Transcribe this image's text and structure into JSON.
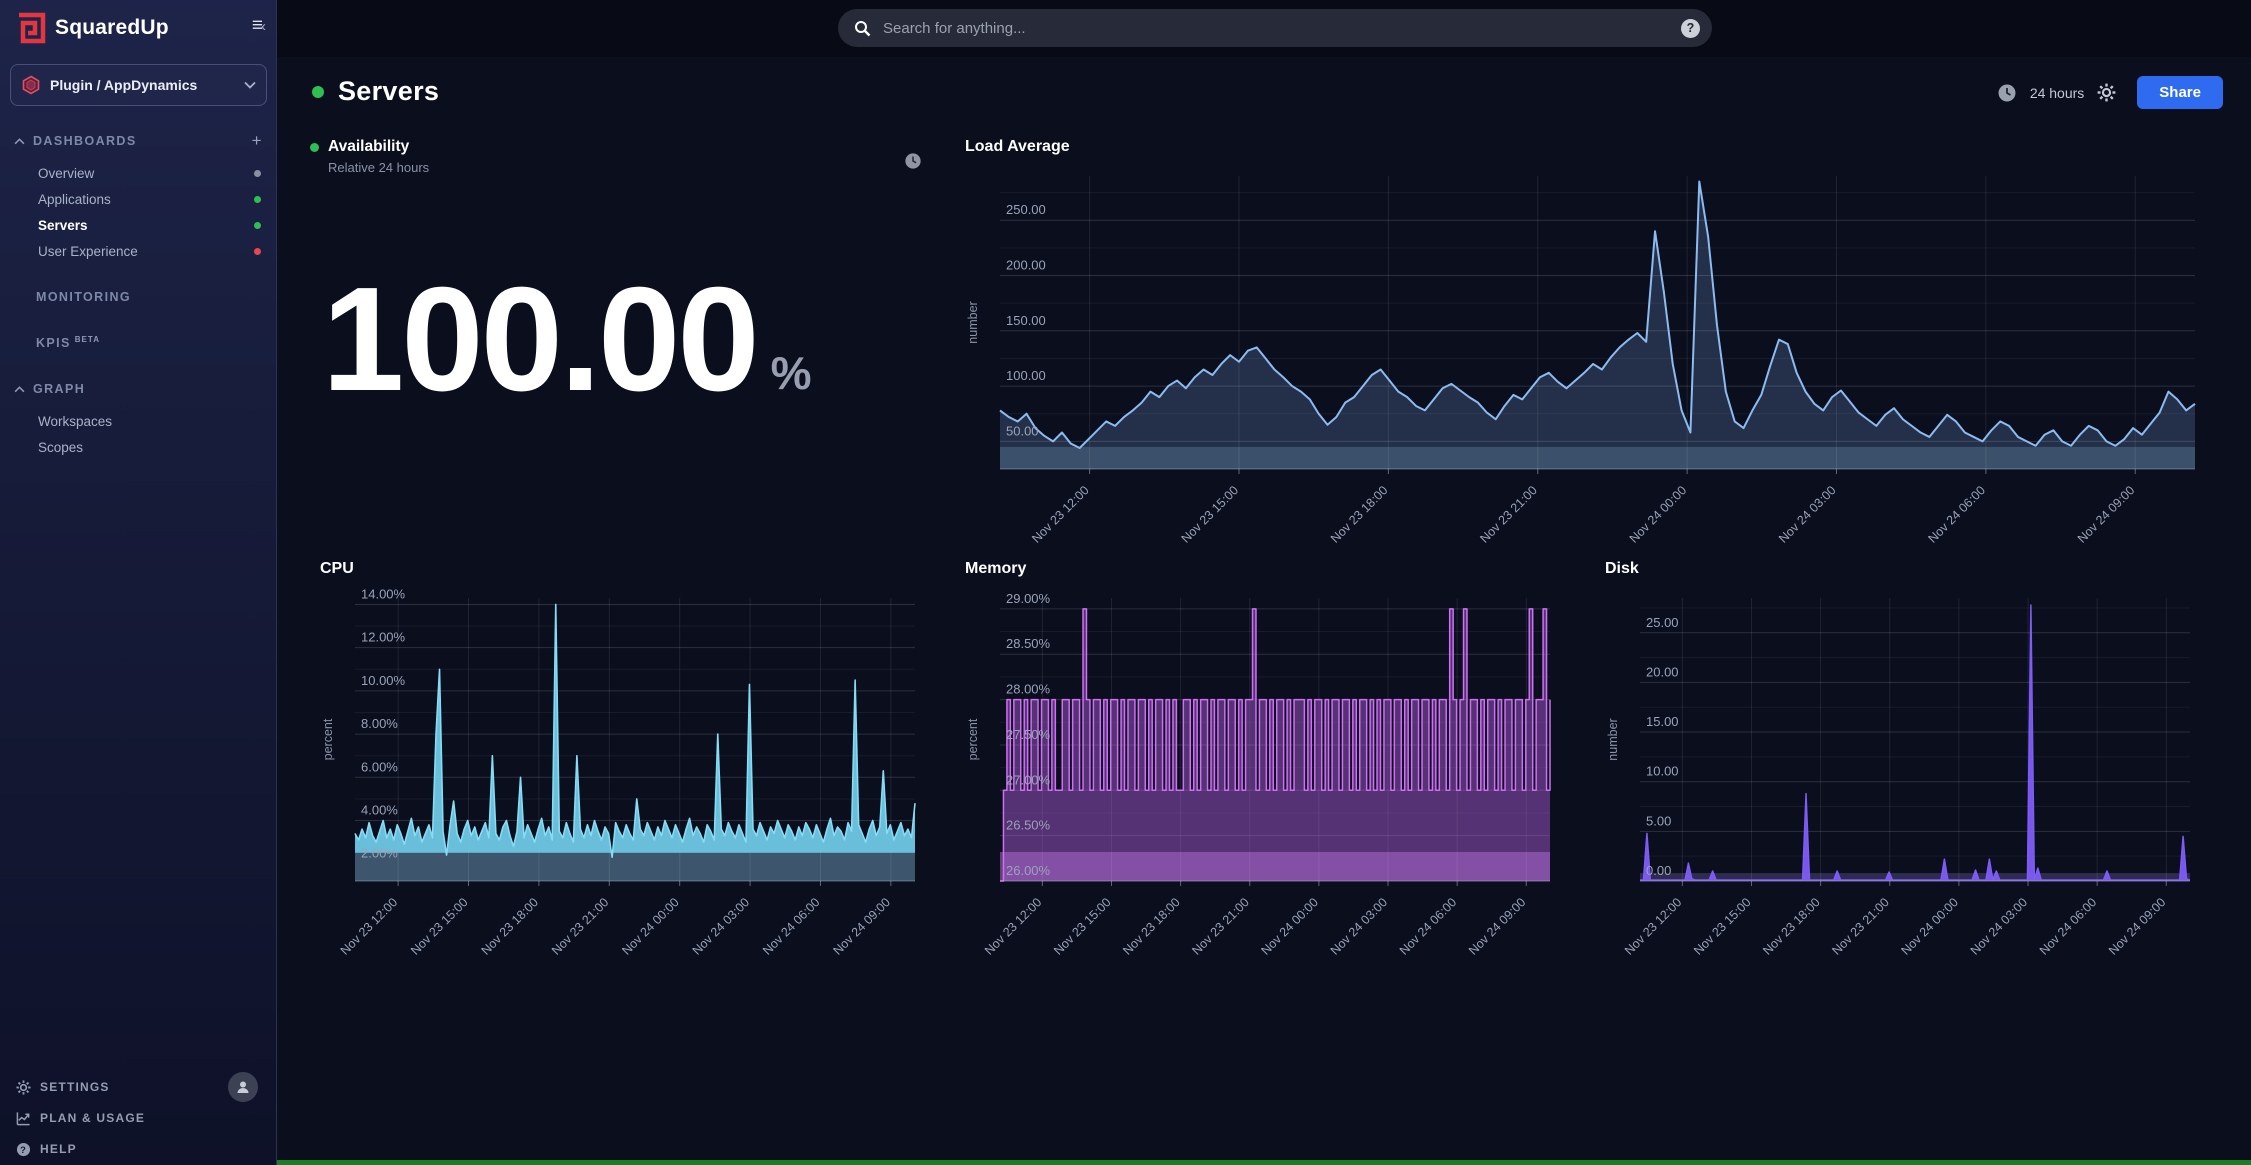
{
  "colors": {
    "accent_blue": "#2e6bf0",
    "status_green": "#2fbe52",
    "status_red": "#e5484d",
    "status_gray": "#8a90a0",
    "load_line": "#8cbbf0",
    "cpu_line": "#86dcf5",
    "memory_line": "#d06ef6",
    "disk_line": "#7e5cf6"
  },
  "sidebar": {
    "logo_text": "SquaredUp",
    "workspace": {
      "label": "Plugin / AppDynamics"
    },
    "sections": {
      "dashboards": {
        "label": "DASHBOARDS",
        "items": [
          {
            "label": "Overview",
            "status": "gray"
          },
          {
            "label": "Applications",
            "status": "green"
          },
          {
            "label": "Servers",
            "status": "green",
            "active": true
          },
          {
            "label": "User Experience",
            "status": "red"
          }
        ]
      },
      "monitoring": {
        "label": "MONITORING"
      },
      "kpis": {
        "label": "KPIS",
        "badge": "BETA"
      },
      "graph": {
        "label": "GRAPH",
        "items": [
          {
            "label": "Workspaces"
          },
          {
            "label": "Scopes"
          }
        ]
      }
    },
    "footer": {
      "settings": "SETTINGS",
      "plan_usage": "PLAN & USAGE",
      "help": "HELP"
    }
  },
  "topbar": {
    "search_placeholder": "Search for anything..."
  },
  "header": {
    "title": "Servers",
    "time_range": "24 hours",
    "share_label": "Share"
  },
  "availability": {
    "title": "Availability",
    "subtitle": "Relative 24 hours",
    "value": "100.00",
    "unit": "%"
  },
  "chart_data": [
    {
      "type": "area",
      "title": "Load Average",
      "ytitle": "number",
      "color": "#8cbbf0",
      "fill": "rgba(130,175,232,0.22)",
      "fill_to": 45,
      "band": {
        "from": 45,
        "color": "#3b506a"
      },
      "stroke_width": 2,
      "ylim": [
        25,
        290
      ],
      "yticks": [
        {
          "v": 50,
          "label": "50.00"
        },
        {
          "v": 100,
          "label": "100.00"
        },
        {
          "v": 150,
          "label": "150.00"
        },
        {
          "v": 200,
          "label": "200.00"
        },
        {
          "v": 250,
          "label": "250.00"
        }
      ],
      "x_first": 0.075,
      "x_step": 0.125,
      "x_labels": [
        "Nov 23 12:00",
        "Nov 23 15:00",
        "Nov 23 18:00",
        "Nov 23 21:00",
        "Nov 24 00:00",
        "Nov 24 03:00",
        "Nov 24 06:00",
        "Nov 24 09:00"
      ],
      "values": [
        78,
        72,
        68,
        75,
        62,
        55,
        50,
        58,
        48,
        44,
        52,
        60,
        68,
        64,
        72,
        78,
        85,
        95,
        90,
        100,
        105,
        98,
        108,
        115,
        110,
        120,
        128,
        122,
        132,
        135,
        125,
        115,
        108,
        100,
        95,
        88,
        75,
        65,
        72,
        85,
        90,
        100,
        110,
        115,
        105,
        95,
        90,
        82,
        78,
        88,
        98,
        102,
        96,
        90,
        85,
        76,
        70,
        82,
        92,
        88,
        98,
        108,
        112,
        104,
        98,
        105,
        112,
        120,
        115,
        126,
        135,
        142,
        148,
        140,
        240,
        185,
        120,
        78,
        58,
        285,
        235,
        155,
        95,
        68,
        62,
        78,
        92,
        118,
        142,
        138,
        112,
        95,
        84,
        78,
        90,
        96,
        86,
        76,
        70,
        64,
        74,
        80,
        70,
        64,
        58,
        54,
        64,
        74,
        68,
        58,
        54,
        50,
        60,
        68,
        64,
        54,
        50,
        46,
        56,
        60,
        50,
        46,
        56,
        64,
        60,
        50,
        46,
        52,
        62,
        56,
        66,
        76,
        95,
        88,
        78,
        84
      ]
    },
    {
      "type": "area",
      "title": "CPU",
      "ytitle": "percent",
      "color": "#86dcf5",
      "fill": "rgba(115,210,240,0.9)",
      "fill_to": 2.5,
      "band": {
        "from": 2.5,
        "color": "#3d566e"
      },
      "stroke_width": 1.6,
      "ylim": [
        1.2,
        14.3
      ],
      "yticks": [
        {
          "v": 2,
          "label": "2.00%"
        },
        {
          "v": 4,
          "label": "4.00%"
        },
        {
          "v": 6,
          "label": "6.00%"
        },
        {
          "v": 8,
          "label": "8.00%"
        },
        {
          "v": 10,
          "label": "10.00%"
        },
        {
          "v": 12,
          "label": "12.00%"
        },
        {
          "v": 14,
          "label": "14.00%"
        }
      ],
      "x_first": 0.077,
      "x_step": 0.1257,
      "x_labels": [
        "Nov 23 12:00",
        "Nov 23 15:00",
        "Nov 23 18:00",
        "Nov 23 21:00",
        "Nov 24 00:00",
        "Nov 24 03:00",
        "Nov 24 06:00",
        "Nov 24 09:00"
      ],
      "values": [
        3.4,
        3.1,
        3.6,
        3.2,
        3.9,
        3.3,
        3.0,
        3.5,
        4.0,
        3.2,
        3.6,
        3.1,
        3.8,
        3.4,
        2.9,
        3.5,
        4.1,
        3.3,
        3.7,
        3.0,
        3.4,
        3.8,
        3.2,
        8.0,
        11.0,
        3.5,
        2.4,
        3.8,
        4.9,
        3.4,
        3.0,
        3.6,
        4.0,
        3.3,
        3.7,
        3.1,
        3.5,
        3.9,
        3.2,
        7.0,
        3.4,
        3.1,
        3.7,
        4.0,
        3.3,
        2.8,
        3.5,
        6.0,
        3.2,
        3.8,
        3.4,
        3.0,
        3.6,
        4.1,
        3.3,
        3.7,
        3.1,
        14.0,
        3.5,
        3.2,
        3.9,
        3.4,
        3.0,
        7.0,
        3.6,
        3.2,
        3.8,
        3.3,
        4.0,
        3.5,
        3.1,
        3.7,
        3.4,
        2.3,
        3.9,
        3.5,
        3.2,
        3.8,
        3.4,
        3.1,
        5.0,
        3.6,
        3.3,
        3.9,
        3.5,
        3.1,
        3.7,
        3.3,
        4.0,
        3.6,
        3.2,
        3.8,
        3.4,
        3.0,
        3.6,
        4.1,
        3.3,
        3.7,
        3.4,
        3.0,
        3.8,
        3.5,
        3.1,
        8.0,
        3.6,
        3.3,
        3.9,
        3.5,
        3.2,
        3.8,
        3.4,
        3.0,
        10.3,
        3.6,
        3.3,
        3.9,
        3.5,
        3.1,
        3.7,
        3.4,
        4.0,
        3.6,
        3.2,
        3.8,
        3.5,
        3.1,
        3.7,
        3.3,
        3.9,
        3.6,
        3.2,
        3.8,
        3.4,
        3.0,
        3.6,
        4.1,
        3.3,
        3.7,
        3.5,
        3.1,
        3.9,
        3.5,
        10.5,
        3.8,
        3.4,
        3.0,
        3.6,
        4.0,
        3.3,
        3.7,
        6.3,
        3.4,
        3.8,
        3.1,
        3.5,
        3.9,
        3.3,
        3.6,
        3.2,
        4.8
      ]
    },
    {
      "type": "step-area",
      "title": "Memory",
      "ytitle": "percent",
      "color": "#d06ef6",
      "fill": "rgba(190,100,235,0.42)",
      "fill_to": 26,
      "band": {
        "from": 26.32,
        "color": "#5b4374"
      },
      "step": true,
      "stroke_width": 1.5,
      "ylim": [
        26,
        29.12
      ],
      "yticks": [
        {
          "v": 26,
          "label": "26.00%"
        },
        {
          "v": 26.5,
          "label": "26.50%"
        },
        {
          "v": 27,
          "label": "27.00%"
        },
        {
          "v": 27.5,
          "label": "27.50%"
        },
        {
          "v": 28,
          "label": "28.00%"
        },
        {
          "v": 28.5,
          "label": "28.50%"
        },
        {
          "v": 29,
          "label": "29.00%"
        }
      ],
      "x_first": 0.077,
      "x_step": 0.1257,
      "x_labels": [
        "Nov 23 12:00",
        "Nov 23 15:00",
        "Nov 23 18:00",
        "Nov 23 21:00",
        "Nov 24 00:00",
        "Nov 24 03:00",
        "Nov 24 06:00",
        "Nov 24 09:00"
      ],
      "values": [
        26.0,
        27.0,
        28.0,
        27.0,
        28.0,
        28.0,
        27.0,
        28.0,
        27.0,
        28.0,
        28.0,
        27.0,
        28.0,
        28.0,
        27.0,
        28.0,
        27.0,
        27.0,
        28.0,
        28.0,
        27.0,
        28.0,
        28.0,
        27.0,
        29.0,
        28.0,
        27.0,
        28.0,
        28.0,
        27.0,
        28.0,
        27.0,
        28.0,
        28.0,
        27.0,
        28.0,
        27.0,
        28.0,
        28.0,
        27.0,
        28.0,
        28.0,
        27.0,
        28.0,
        27.0,
        28.0,
        28.0,
        27.0,
        28.0,
        27.0,
        28.0,
        27.0,
        27.0,
        28.0,
        28.0,
        27.0,
        28.0,
        27.0,
        28.0,
        28.0,
        27.0,
        28.0,
        27.0,
        28.0,
        28.0,
        27.0,
        28.0,
        28.0,
        27.0,
        28.0,
        27.0,
        28.0,
        28.0,
        29.0,
        27.0,
        28.0,
        28.0,
        27.0,
        28.0,
        27.0,
        28.0,
        28.0,
        27.0,
        28.0,
        27.0,
        28.0,
        28.0,
        28.0,
        27.0,
        28.0,
        27.0,
        28.0,
        28.0,
        27.0,
        28.0,
        27.0,
        28.0,
        28.0,
        27.0,
        28.0,
        28.0,
        27.0,
        28.0,
        27.0,
        28.0,
        28.0,
        27.0,
        28.0,
        27.0,
        28.0,
        27.0,
        28.0,
        28.0,
        27.0,
        28.0,
        28.0,
        27.0,
        28.0,
        27.0,
        28.0,
        28.0,
        27.0,
        28.0,
        28.0,
        27.0,
        28.0,
        27.0,
        28.0,
        28.0,
        27.0,
        29.0,
        28.0,
        27.0,
        28.0,
        29.0,
        27.0,
        28.0,
        28.0,
        27.0,
        28.0,
        27.0,
        28.0,
        28.0,
        27.0,
        28.0,
        27.0,
        28.0,
        28.0,
        27.0,
        28.0,
        28.0,
        27.0,
        28.0,
        29.0,
        27.0,
        28.0,
        28.0,
        29.0,
        27.0,
        28.0
      ]
    },
    {
      "type": "area",
      "title": "Disk",
      "ytitle": "number",
      "color": "#7e5cf6",
      "fill": "rgba(126,92,246,0.95)",
      "fill_to": 0,
      "band": {
        "from": 0.8,
        "color": "#2f2b4e"
      },
      "stroke_width": 1.5,
      "ylim": [
        0,
        28.5
      ],
      "yticks": [
        {
          "v": 0,
          "label": "0.00"
        },
        {
          "v": 5,
          "label": "5.00"
        },
        {
          "v": 10,
          "label": "10.00"
        },
        {
          "v": 15,
          "label": "15.00"
        },
        {
          "v": 20,
          "label": "20.00"
        },
        {
          "v": 25,
          "label": "25.00"
        }
      ],
      "x_first": 0.077,
      "x_step": 0.1257,
      "x_labels": [
        "Nov 23 12:00",
        "Nov 23 15:00",
        "Nov 23 18:00",
        "Nov 23 21:00",
        "Nov 24 00:00",
        "Nov 24 03:00",
        "Nov 24 06:00",
        "Nov 24 09:00"
      ],
      "values": [
        0.1,
        0.1,
        4.8,
        0.1,
        0.1,
        0.1,
        0.1,
        0.1,
        0.1,
        0.1,
        0.1,
        0.1,
        0.1,
        0.1,
        1.8,
        0.2,
        0.1,
        0.1,
        0.1,
        0.1,
        0.1,
        1.0,
        0.1,
        0.1,
        0.1,
        0.1,
        0.1,
        0.1,
        0.1,
        0.1,
        0.1,
        0.1,
        0.1,
        0.1,
        0.1,
        0.1,
        0.1,
        0.1,
        0.1,
        0.1,
        0.1,
        0.1,
        0.1,
        0.1,
        0.1,
        0.1,
        0.1,
        0.1,
        8.8,
        0.1,
        0.1,
        0.1,
        0.1,
        0.1,
        0.1,
        0.1,
        0.1,
        1.0,
        0.1,
        0.1,
        0.1,
        0.1,
        0.1,
        0.1,
        0.1,
        0.1,
        0.1,
        0.1,
        0.1,
        0.1,
        0.1,
        0.1,
        0.9,
        0.1,
        0.1,
        0.1,
        0.1,
        0.1,
        0.1,
        0.1,
        0.1,
        0.1,
        0.1,
        0.1,
        0.1,
        0.1,
        0.1,
        0.1,
        2.2,
        0.1,
        0.1,
        0.1,
        0.1,
        0.1,
        0.1,
        0.1,
        0.1,
        1.1,
        0.1,
        0.1,
        0.1,
        2.2,
        0.1,
        1.0,
        0.1,
        0.1,
        0.1,
        0.1,
        0.1,
        0.1,
        0.1,
        0.1,
        0.1,
        27.8,
        0.1,
        1.3,
        0.1,
        0.1,
        0.1,
        0.1,
        0.1,
        0.1,
        0.1,
        0.1,
        0.1,
        0.1,
        0.1,
        0.1,
        0.1,
        0.1,
        0.1,
        0.1,
        0.1,
        0.1,
        0.1,
        1.0,
        0.1,
        0.1,
        0.1,
        0.1,
        0.1,
        0.1,
        0.1,
        0.1,
        0.1,
        0.1,
        0.1,
        0.1,
        0.1,
        0.1,
        0.1,
        0.1,
        0.1,
        0.1,
        0.1,
        0.1,
        0.1,
        4.5,
        0.2,
        0.1
      ]
    }
  ]
}
